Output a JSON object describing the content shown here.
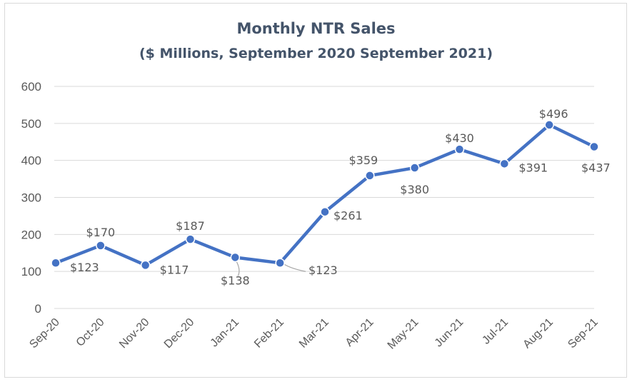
{
  "chart_data": {
    "type": "line",
    "title": "Monthly NTR Sales",
    "subtitle": "($ Millions, September 2020 September 2021)",
    "categories": [
      "Sep-20",
      "Oct-20",
      "Nov-20",
      "Dec-20",
      "Jan-21",
      "Feb-21",
      "Mar-21",
      "Apr-21",
      "May-21",
      "Jun-21",
      "Jul-21",
      "Aug-21",
      "Sep-21"
    ],
    "values": [
      123,
      170,
      117,
      187,
      138,
      123,
      261,
      359,
      380,
      430,
      391,
      496,
      437
    ],
    "data_labels": [
      "$123",
      "$170",
      "$117",
      "$187",
      "$138",
      "$123",
      "$261",
      "$359",
      "$380",
      "$430",
      "$391",
      "$496",
      "$437"
    ],
    "y_ticks": [
      "0",
      "100",
      "200",
      "300",
      "400",
      "500",
      "600"
    ],
    "ylim": [
      0,
      600
    ],
    "grid": true,
    "legend": "none",
    "colors": {
      "line": "#4472c4",
      "grid": "#d9d9d9",
      "text": "#595959",
      "title": "#44546a",
      "leader": "#a6a6a6"
    }
  }
}
